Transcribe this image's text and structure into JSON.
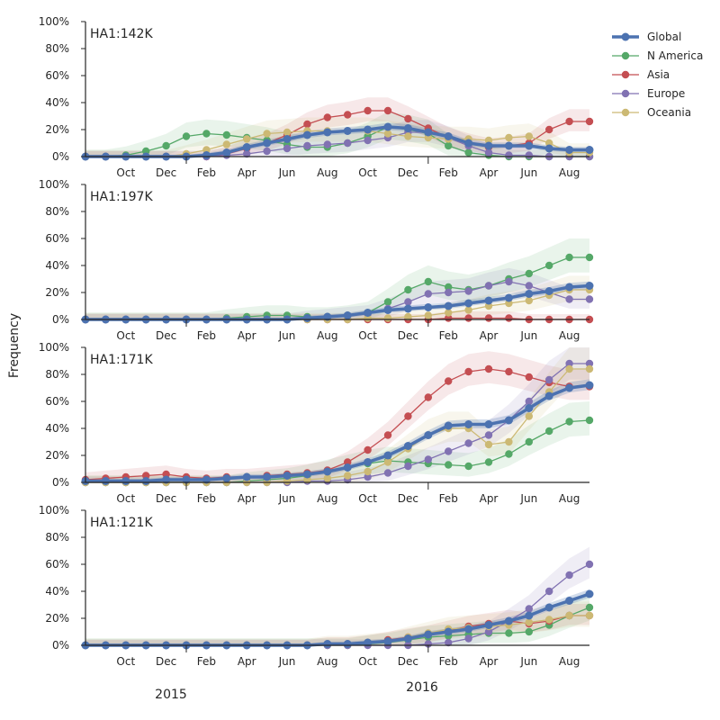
{
  "chart_data": {
    "type": "line",
    "ylabel": "Frequency",
    "yticks": [
      "0%",
      "20%",
      "40%",
      "60%",
      "80%",
      "100%"
    ],
    "ylim": [
      0,
      1
    ],
    "x_months": [
      "2015-08",
      "2015-09",
      "2015-10",
      "2015-11",
      "2015-12",
      "2016-01",
      "2016-02",
      "2016-03",
      "2016-04",
      "2016-05",
      "2016-06",
      "2016-07",
      "2016-08",
      "2016-09",
      "2016-10",
      "2016-11",
      "2016-12",
      "2017-01",
      "2017-02",
      "2017-03",
      "2017-04",
      "2017-05",
      "2017-06",
      "2017-07",
      "2017-08",
      "2017-09"
    ],
    "xtick_labels": [
      "Oct",
      "Dec",
      "Feb",
      "Apr",
      "Jun",
      "Aug",
      "Oct",
      "Dec",
      "Feb",
      "Apr",
      "Jun",
      "Aug"
    ],
    "year_labels": [
      "2015",
      "2016"
    ],
    "legend": {
      "position": "top-right",
      "entries": [
        "Global",
        "N America",
        "Asia",
        "Europe",
        "Oceania"
      ]
    },
    "colors": {
      "Global": "#4c72b0",
      "N America": "#55a868",
      "Asia": "#c44e52",
      "Europe": "#8172b2",
      "Oceania": "#ccb974"
    },
    "panels": [
      {
        "title": "HA1:142K",
        "series": [
          {
            "name": "Global",
            "values": [
              0,
              0,
              0,
              0,
              0,
              0,
              0.01,
              0.03,
              0.07,
              0.1,
              0.13,
              0.16,
              0.18,
              0.19,
              0.2,
              0.22,
              0.21,
              0.18,
              0.15,
              0.1,
              0.08,
              0.08,
              0.08,
              0.06,
              0.05,
              0.05
            ]
          },
          {
            "name": "N America",
            "values": [
              0,
              0,
              0.01,
              0.04,
              0.08,
              0.15,
              0.17,
              0.16,
              0.14,
              0.12,
              0.09,
              0.07,
              0.07,
              0.1,
              0.15,
              0.22,
              0.2,
              0.17,
              0.08,
              0.03,
              0.01,
              0,
              0,
              0,
              0,
              0
            ]
          },
          {
            "name": "Asia",
            "values": [
              0,
              0,
              0,
              0,
              0,
              0,
              0,
              0.02,
              0.06,
              0.1,
              0.16,
              0.24,
              0.29,
              0.31,
              0.34,
              0.34,
              0.28,
              0.21,
              0.14,
              0.1,
              0.07,
              0.08,
              0.1,
              0.2,
              0.26,
              0.26
            ]
          },
          {
            "name": "Europe",
            "values": [
              0,
              0,
              0,
              0,
              0,
              0,
              0,
              0.01,
              0.02,
              0.04,
              0.06,
              0.08,
              0.09,
              0.1,
              0.12,
              0.14,
              0.18,
              0.18,
              0.14,
              0.08,
              0.03,
              0.01,
              0.01,
              0,
              0,
              0
            ]
          },
          {
            "name": "Oceania",
            "values": [
              0,
              0,
              0,
              0,
              0,
              0.02,
              0.05,
              0.09,
              0.13,
              0.17,
              0.18,
              0.19,
              0.19,
              0.19,
              0.19,
              0.17,
              0.15,
              0.14,
              0.13,
              0.13,
              0.12,
              0.14,
              0.15,
              0.1,
              0.03,
              0.03
            ]
          }
        ]
      },
      {
        "title": "HA1:197K",
        "series": [
          {
            "name": "Global",
            "values": [
              0,
              0,
              0,
              0,
              0,
              0,
              0,
              0,
              0,
              0,
              0,
              0.01,
              0.02,
              0.03,
              0.05,
              0.07,
              0.08,
              0.09,
              0.1,
              0.12,
              0.14,
              0.16,
              0.19,
              0.21,
              0.24,
              0.25
            ]
          },
          {
            "name": "N America",
            "values": [
              0,
              0,
              0,
              0,
              0,
              0,
              0,
              0.01,
              0.02,
              0.03,
              0.03,
              0.02,
              0.02,
              0.03,
              0.05,
              0.13,
              0.22,
              0.28,
              0.24,
              0.22,
              0.25,
              0.3,
              0.34,
              0.4,
              0.46,
              0.46
            ]
          },
          {
            "name": "Asia",
            "values": [
              0,
              0,
              0,
              0,
              0,
              0,
              0,
              0,
              0,
              0,
              0,
              0,
              0,
              0,
              0,
              0,
              0,
              0,
              0.01,
              0.01,
              0.01,
              0.01,
              0,
              0,
              0,
              0
            ]
          },
          {
            "name": "Europe",
            "values": [
              0,
              0,
              0,
              0,
              0,
              0,
              0,
              0,
              0,
              0,
              0,
              0.01,
              0.02,
              0.03,
              0.04,
              0.08,
              0.13,
              0.19,
              0.2,
              0.21,
              0.25,
              0.28,
              0.25,
              0.2,
              0.15,
              0.15
            ]
          },
          {
            "name": "Oceania",
            "values": [
              0,
              0,
              0,
              0,
              0,
              0,
              0,
              0,
              0,
              0,
              0,
              0,
              0,
              0,
              0.01,
              0.01,
              0.02,
              0.03,
              0.05,
              0.07,
              0.1,
              0.12,
              0.14,
              0.18,
              0.22,
              0.22
            ]
          }
        ]
      },
      {
        "title": "HA1:171K",
        "series": [
          {
            "name": "Global",
            "values": [
              0.01,
              0.01,
              0.01,
              0.01,
              0.02,
              0.02,
              0.02,
              0.03,
              0.04,
              0.04,
              0.05,
              0.06,
              0.08,
              0.11,
              0.15,
              0.2,
              0.27,
              0.35,
              0.42,
              0.43,
              0.43,
              0.46,
              0.55,
              0.64,
              0.7,
              0.72
            ]
          },
          {
            "name": "N America",
            "values": [
              0,
              0,
              0,
              0,
              0,
              0,
              0,
              0,
              0.01,
              0.02,
              0.03,
              0.05,
              0.08,
              0.11,
              0.14,
              0.16,
              0.15,
              0.14,
              0.13,
              0.12,
              0.15,
              0.21,
              0.3,
              0.38,
              0.45,
              0.46
            ]
          },
          {
            "name": "Asia",
            "values": [
              0.02,
              0.03,
              0.04,
              0.05,
              0.06,
              0.04,
              0.03,
              0.04,
              0.04,
              0.05,
              0.06,
              0.07,
              0.09,
              0.15,
              0.24,
              0.35,
              0.49,
              0.63,
              0.75,
              0.82,
              0.84,
              0.82,
              0.78,
              0.74,
              0.71,
              0.71
            ]
          },
          {
            "name": "Europe",
            "values": [
              0,
              0,
              0,
              0,
              0,
              0,
              0,
              0,
              0,
              0,
              0,
              0.01,
              0.01,
              0.02,
              0.04,
              0.07,
              0.12,
              0.17,
              0.23,
              0.29,
              0.35,
              0.46,
              0.6,
              0.76,
              0.88,
              0.88
            ]
          },
          {
            "name": "Oceania",
            "values": [
              0,
              0,
              0,
              0,
              0,
              0,
              0,
              0,
              0,
              0,
              0.01,
              0.02,
              0.03,
              0.05,
              0.08,
              0.15,
              0.25,
              0.35,
              0.4,
              0.4,
              0.28,
              0.3,
              0.49,
              0.67,
              0.84,
              0.84
            ]
          }
        ]
      },
      {
        "title": "HA1:121K",
        "series": [
          {
            "name": "Global",
            "values": [
              0,
              0,
              0,
              0,
              0,
              0,
              0,
              0,
              0,
              0,
              0,
              0,
              0.01,
              0.01,
              0.02,
              0.03,
              0.05,
              0.08,
              0.1,
              0.12,
              0.15,
              0.18,
              0.22,
              0.28,
              0.33,
              0.38
            ]
          },
          {
            "name": "N America",
            "values": [
              0,
              0,
              0,
              0,
              0,
              0,
              0,
              0,
              0,
              0,
              0,
              0,
              0,
              0,
              0.01,
              0.02,
              0.04,
              0.06,
              0.07,
              0.08,
              0.09,
              0.09,
              0.1,
              0.15,
              0.22,
              0.28
            ]
          },
          {
            "name": "Asia",
            "values": [
              0,
              0,
              0,
              0,
              0,
              0,
              0,
              0,
              0,
              0,
              0,
              0,
              0.01,
              0.01,
              0.02,
              0.04,
              0.06,
              0.08,
              0.11,
              0.14,
              0.16,
              0.18,
              0.16,
              0.18,
              0.22,
              0.22
            ]
          },
          {
            "name": "Europe",
            "values": [
              0,
              0,
              0,
              0,
              0,
              0,
              0,
              0,
              0,
              0,
              0,
              0,
              0,
              0,
              0,
              0,
              0,
              0.01,
              0.02,
              0.05,
              0.1,
              0.18,
              0.27,
              0.4,
              0.52,
              0.6
            ]
          },
          {
            "name": "Oceania",
            "values": [
              0,
              0,
              0,
              0,
              0,
              0,
              0,
              0,
              0,
              0,
              0,
              0,
              0.01,
              0.01,
              0.02,
              0.03,
              0.06,
              0.09,
              0.12,
              0.13,
              0.14,
              0.15,
              0.17,
              0.19,
              0.22,
              0.22
            ]
          }
        ]
      }
    ]
  }
}
